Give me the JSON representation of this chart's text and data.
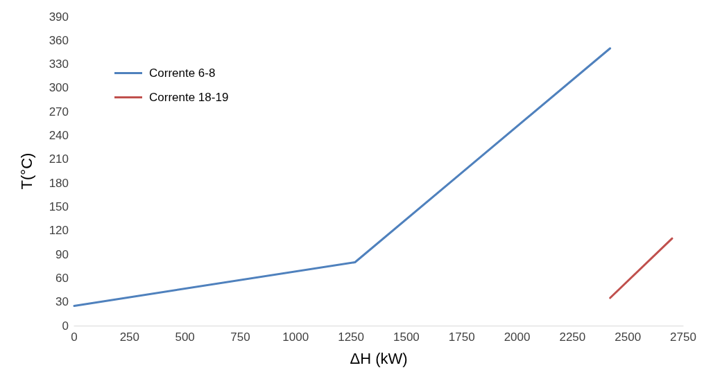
{
  "chart_data": {
    "type": "line",
    "xlabel": "ΔH (kW)",
    "ylabel": "T(°C)",
    "xlim": [
      0,
      2750
    ],
    "xticks": [
      0,
      250,
      500,
      750,
      1000,
      1250,
      1500,
      1750,
      2000,
      2250,
      2500,
      2750
    ],
    "ylim": [
      0,
      390
    ],
    "yticks": [
      0,
      30,
      60,
      90,
      120,
      150,
      180,
      210,
      240,
      270,
      300,
      330,
      360,
      390
    ],
    "grid": false,
    "legend": "top left",
    "marker": "none",
    "line_style": "solid",
    "series": [
      {
        "name": "Corrente 6-8",
        "color": "#4f81bd",
        "x": [
          0,
          1268,
          2420
        ],
        "values": [
          25,
          80,
          350
        ]
      },
      {
        "name": "Corrente 18-19",
        "color": "#c0504d",
        "x": [
          2420,
          2700
        ],
        "values": [
          35,
          110
        ]
      }
    ]
  }
}
